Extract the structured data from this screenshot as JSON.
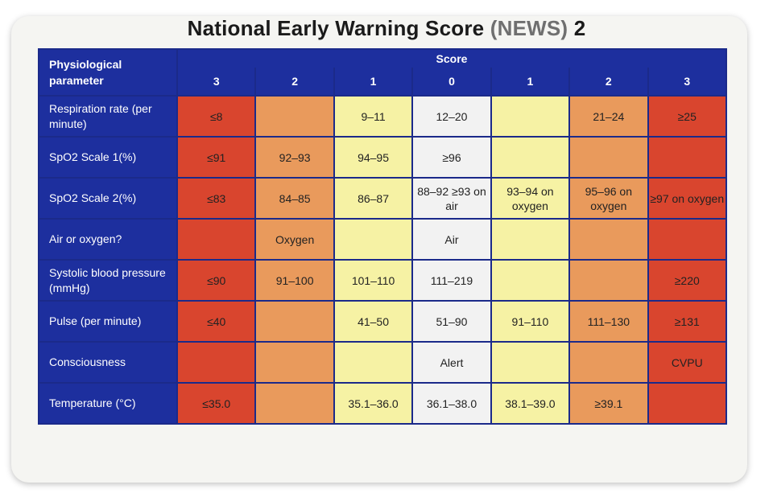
{
  "title": {
    "main": "National Early Warning Score",
    "abbr": "(NEWS)",
    "version": "2"
  },
  "header": {
    "param_label": "Physiological parameter",
    "score_label": "Score",
    "columns": [
      "3",
      "2",
      "1",
      "0",
      "1",
      "2",
      "3"
    ]
  },
  "colors": {
    "header_blue": "#1d2f9e",
    "score_3": "#d9452e",
    "score_2": "#e99a5c",
    "score_1": "#f6f2a4",
    "score_0": "#f2f2f2"
  },
  "rows": [
    {
      "label": "Respiration rate (per minute)",
      "cells": [
        "≤8",
        "",
        "9–11",
        "12–20",
        "",
        "21–24",
        "≥25"
      ]
    },
    {
      "label": "SpO2 Scale 1(%)",
      "cells": [
        "≤91",
        "92–93",
        "94–95",
        "≥96",
        "",
        "",
        ""
      ]
    },
    {
      "label": "SpO2 Scale 2(%)",
      "cells": [
        "≤83",
        "84–85",
        "86–87",
        "88–92 ≥93 on air",
        "93–94 on oxygen",
        "95–96 on oxygen",
        "≥97 on oxygen"
      ]
    },
    {
      "label": "Air or oxygen?",
      "cells": [
        "",
        "Oxygen",
        "",
        "Air",
        "",
        "",
        ""
      ]
    },
    {
      "label": "Systolic blood pressure (mmHg)",
      "cells": [
        "≤90",
        "91–100",
        "101–110",
        "111–219",
        "",
        "",
        "≥220"
      ]
    },
    {
      "label": "Pulse (per minute)",
      "cells": [
        "≤40",
        "",
        "41–50",
        "51–90",
        "91–110",
        "111–130",
        "≥131"
      ]
    },
    {
      "label": "Consciousness",
      "cells": [
        "",
        "",
        "",
        "Alert",
        "",
        "",
        "CVPU"
      ]
    },
    {
      "label": "Temperature (°C)",
      "cells": [
        "≤35.0",
        "",
        "35.1–36.0",
        "36.1–38.0",
        "38.1–39.0",
        "≥39.1",
        ""
      ]
    }
  ]
}
